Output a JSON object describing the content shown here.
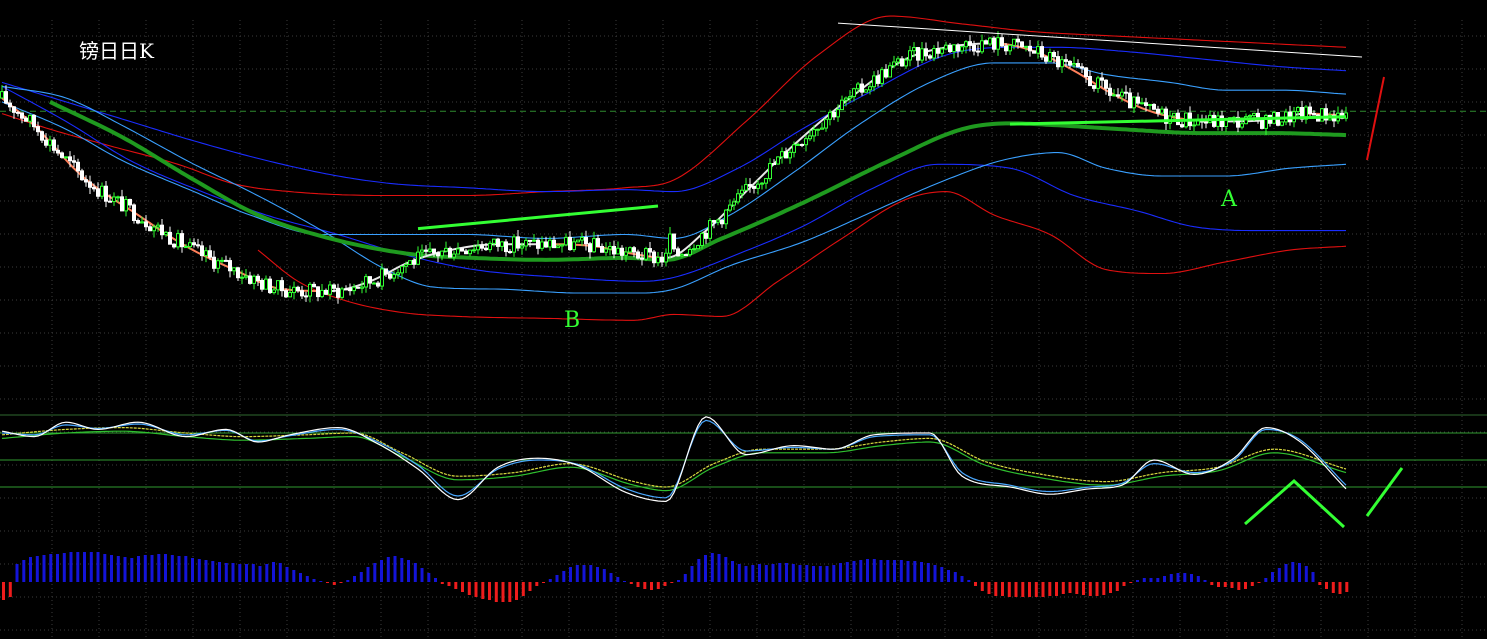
{
  "chart_data": [
    {
      "type": "candlestick",
      "panel": "price",
      "title": "镑日日K",
      "annotations": [
        "A",
        "B"
      ],
      "colors": {
        "up_candle": "#33ff33",
        "down_candle": "#ffffff",
        "ma_short": "#e8e8e8",
        "ma_short_falling": "#ff7f5a",
        "ma_long": "#1f9a1f",
        "band_inner": "#3aa0ff",
        "band_middle": "#1a2dff",
        "band_outer": "#e01010",
        "trendline": "#33ff33",
        "upper_trendline": "#ffffff",
        "dashed_level": "#2f8a2f"
      },
      "grid": true,
      "ma_short_knots": [
        [
          0,
          80
        ],
        [
          8,
          73
        ],
        [
          20,
          60
        ],
        [
          34,
          50
        ],
        [
          46,
          42
        ],
        [
          58,
          36
        ],
        [
          70,
          31
        ],
        [
          82,
          30.5
        ],
        [
          92,
          33
        ],
        [
          102,
          38
        ],
        [
          112,
          41
        ],
        [
          124,
          42.5
        ],
        [
          136,
          42.5
        ],
        [
          148,
          42
        ],
        [
          158,
          40
        ],
        [
          166,
          39
        ],
        [
          176,
          46
        ],
        [
          186,
          56
        ],
        [
          198,
          68
        ],
        [
          212,
          80
        ],
        [
          226,
          90
        ],
        [
          236,
          93
        ],
        [
          248,
          94
        ],
        [
          258,
          92
        ],
        [
          268,
          87
        ],
        [
          276,
          82
        ],
        [
          286,
          77
        ],
        [
          296,
          74.5
        ],
        [
          306,
          74
        ],
        [
          318,
          74.5
        ],
        [
          326,
          76
        ],
        [
          336,
          75.5
        ]
      ],
      "ma_long_knots": [
        [
          12,
          79
        ],
        [
          30,
          70
        ],
        [
          48,
          59
        ],
        [
          64,
          50
        ],
        [
          82,
          44
        ],
        [
          102,
          40
        ],
        [
          118,
          39
        ],
        [
          136,
          38.5
        ],
        [
          156,
          39
        ],
        [
          166,
          38.5
        ],
        [
          180,
          44
        ],
        [
          200,
          53
        ],
        [
          222,
          64
        ],
        [
          240,
          72
        ],
        [
          252,
          73.5
        ],
        [
          264,
          73
        ],
        [
          280,
          72
        ],
        [
          300,
          71
        ],
        [
          318,
          71
        ],
        [
          336,
          70.5
        ]
      ],
      "band_inner_upper_knots": [
        [
          0,
          79
        ],
        [
          16,
          72
        ],
        [
          30,
          64
        ],
        [
          48,
          56
        ],
        [
          62,
          50
        ],
        [
          80,
          45
        ],
        [
          96,
          45
        ],
        [
          116,
          45
        ],
        [
          136,
          44
        ],
        [
          156,
          45
        ],
        [
          168,
          44
        ],
        [
          182,
          50
        ],
        [
          198,
          61
        ],
        [
          214,
          73
        ],
        [
          232,
          84
        ],
        [
          248,
          89
        ],
        [
          262,
          89
        ],
        [
          276,
          86
        ],
        [
          292,
          84
        ],
        [
          306,
          82
        ],
        [
          320,
          82
        ],
        [
          336,
          81
        ]
      ],
      "band_inner_lower_knots": [
        [
          0,
          83
        ],
        [
          16,
          80
        ],
        [
          30,
          73
        ],
        [
          48,
          63
        ],
        [
          62,
          56
        ],
        [
          80,
          46
        ],
        [
          96,
          36
        ],
        [
          108,
          31.5
        ],
        [
          124,
          31
        ],
        [
          144,
          30
        ],
        [
          160,
          30
        ],
        [
          168,
          31
        ],
        [
          182,
          37
        ],
        [
          200,
          43
        ],
        [
          218,
          51
        ],
        [
          236,
          59
        ],
        [
          250,
          64
        ],
        [
          264,
          66
        ],
        [
          276,
          62
        ],
        [
          290,
          60
        ],
        [
          306,
          60
        ],
        [
          322,
          62
        ],
        [
          336,
          63
        ]
      ],
      "band_middle_upper_knots": [
        [
          0,
          84
        ],
        [
          16,
          79
        ],
        [
          32,
          74
        ],
        [
          48,
          69
        ],
        [
          66,
          64
        ],
        [
          84,
          60
        ],
        [
          98,
          58
        ],
        [
          116,
          57
        ],
        [
          136,
          56
        ],
        [
          156,
          56.5
        ],
        [
          168,
          56
        ],
        [
          184,
          62
        ],
        [
          200,
          72
        ],
        [
          216,
          81
        ],
        [
          236,
          91
        ],
        [
          252,
          93
        ],
        [
          264,
          93
        ],
        [
          280,
          92
        ],
        [
          300,
          90
        ],
        [
          320,
          88
        ],
        [
          336,
          87
        ]
      ],
      "band_middle_lower_knots": [
        [
          0,
          83
        ],
        [
          16,
          74
        ],
        [
          32,
          64
        ],
        [
          50,
          56
        ],
        [
          66,
          50
        ],
        [
          84,
          45
        ],
        [
          100,
          40
        ],
        [
          118,
          36
        ],
        [
          140,
          34
        ],
        [
          160,
          33
        ],
        [
          168,
          34
        ],
        [
          184,
          40
        ],
        [
          200,
          47
        ],
        [
          218,
          57
        ],
        [
          234,
          63
        ],
        [
          252,
          62
        ],
        [
          268,
          55
        ],
        [
          284,
          51
        ],
        [
          298,
          47
        ],
        [
          316,
          46
        ],
        [
          336,
          46
        ]
      ],
      "band_outer_upper_knots": [
        [
          0,
          76
        ],
        [
          12,
          72
        ],
        [
          26,
          68
        ],
        [
          44,
          63
        ],
        [
          58,
          58
        ],
        [
          72,
          56
        ],
        [
          96,
          55
        ],
        [
          116,
          55
        ],
        [
          136,
          56
        ],
        [
          156,
          57
        ],
        [
          168,
          59
        ],
        [
          186,
          74
        ],
        [
          204,
          91
        ],
        [
          222,
          101
        ],
        [
          240,
          99
        ],
        [
          258,
          97
        ],
        [
          276,
          96
        ],
        [
          296,
          95
        ],
        [
          316,
          94
        ],
        [
          336,
          93
        ]
      ],
      "band_outer_lower_knots": [
        [
          64,
          41
        ],
        [
          74,
          33
        ],
        [
          86,
          28
        ],
        [
          100,
          25
        ],
        [
          114,
          24
        ],
        [
          136,
          23.5
        ],
        [
          158,
          23
        ],
        [
          168,
          24.5
        ],
        [
          180,
          24
        ],
        [
          194,
          33
        ],
        [
          210,
          44
        ],
        [
          226,
          54
        ],
        [
          236,
          56
        ],
        [
          248,
          50
        ],
        [
          262,
          45
        ],
        [
          276,
          36
        ],
        [
          290,
          35
        ],
        [
          306,
          38
        ],
        [
          322,
          41
        ],
        [
          336,
          42
        ]
      ],
      "trendline_A": [
        [
          252,
          73.3
        ],
        [
          336,
          75.2
        ]
      ],
      "trendline_B": [
        [
          104,
          46.5
        ],
        [
          164,
          52.3
        ]
      ],
      "upper_trendline": [
        [
          209,
          99.2
        ],
        [
          340,
          90.5
        ]
      ],
      "dashed_level": 76.6,
      "ylim": [
        0,
        100
      ]
    },
    {
      "type": "line",
      "panel": "oscillator",
      "colors": {
        "k_line": "#ffffff",
        "d_line": "#4aa8ff",
        "slow_line": "#d8d840",
        "slow_line2": "#2fbf2f",
        "level_lines": "#2f9a2f",
        "panel_border": "#2f6a2f"
      },
      "levels": [
        80,
        50,
        20
      ],
      "ylim": [
        0,
        100
      ],
      "k_knots": [
        [
          0,
          82
        ],
        [
          8,
          76
        ],
        [
          16,
          92
        ],
        [
          24,
          84
        ],
        [
          34,
          92
        ],
        [
          46,
          76
        ],
        [
          56,
          84
        ],
        [
          64,
          70
        ],
        [
          72,
          78
        ],
        [
          84,
          86
        ],
        [
          94,
          68
        ],
        [
          104,
          40
        ],
        [
          114,
          6
        ],
        [
          124,
          42
        ],
        [
          134,
          52
        ],
        [
          144,
          44
        ],
        [
          156,
          14
        ],
        [
          166,
          4
        ],
        [
          176,
          98
        ],
        [
          186,
          56
        ],
        [
          198,
          66
        ],
        [
          208,
          62
        ],
        [
          218,
          78
        ],
        [
          232,
          80
        ],
        [
          240,
          32
        ],
        [
          252,
          20
        ],
        [
          262,
          12
        ],
        [
          272,
          18
        ],
        [
          280,
          22
        ],
        [
          288,
          50
        ],
        [
          298,
          34
        ],
        [
          308,
          52
        ],
        [
          316,
          86
        ],
        [
          324,
          72
        ],
        [
          336,
          18
        ]
      ],
      "d_knots": [
        [
          0,
          80
        ],
        [
          8,
          78
        ],
        [
          16,
          89
        ],
        [
          24,
          85
        ],
        [
          34,
          90
        ],
        [
          46,
          78
        ],
        [
          56,
          83
        ],
        [
          64,
          71
        ],
        [
          72,
          77
        ],
        [
          84,
          84
        ],
        [
          94,
          70
        ],
        [
          104,
          44
        ],
        [
          114,
          10
        ],
        [
          124,
          40
        ],
        [
          134,
          50
        ],
        [
          144,
          45
        ],
        [
          156,
          18
        ],
        [
          166,
          8
        ],
        [
          176,
          94
        ],
        [
          186,
          60
        ],
        [
          198,
          64
        ],
        [
          208,
          62
        ],
        [
          218,
          76
        ],
        [
          232,
          78
        ],
        [
          240,
          36
        ],
        [
          252,
          22
        ],
        [
          262,
          15
        ],
        [
          272,
          20
        ],
        [
          280,
          24
        ],
        [
          288,
          46
        ],
        [
          298,
          36
        ],
        [
          308,
          50
        ],
        [
          316,
          84
        ],
        [
          324,
          74
        ],
        [
          336,
          22
        ]
      ],
      "slow_knots": [
        [
          0,
          78
        ],
        [
          16,
          84
        ],
        [
          30,
          86
        ],
        [
          46,
          80
        ],
        [
          60,
          76
        ],
        [
          76,
          78
        ],
        [
          88,
          80
        ],
        [
          100,
          58
        ],
        [
          114,
          32
        ],
        [
          128,
          36
        ],
        [
          142,
          46
        ],
        [
          158,
          26
        ],
        [
          166,
          20
        ],
        [
          178,
          46
        ],
        [
          190,
          62
        ],
        [
          206,
          62
        ],
        [
          220,
          70
        ],
        [
          232,
          74
        ],
        [
          246,
          48
        ],
        [
          260,
          34
        ],
        [
          276,
          26
        ],
        [
          290,
          36
        ],
        [
          304,
          42
        ],
        [
          318,
          62
        ],
        [
          336,
          40
        ]
      ]
    },
    {
      "type": "bar",
      "panel": "histogram",
      "colors": {
        "positive": "#1414d8",
        "negative": "#ee1c1c"
      },
      "ylim": [
        -55,
        60
      ],
      "values": [
        -18,
        -15,
        18,
        22,
        25,
        26,
        27,
        28,
        28,
        29,
        30,
        30,
        30,
        30,
        30,
        28,
        27,
        26,
        25,
        24,
        26,
        27,
        27,
        28,
        28,
        27,
        26,
        26,
        24,
        23,
        22,
        21,
        20,
        19,
        19,
        18,
        18,
        18,
        16,
        18,
        20,
        19,
        15,
        12,
        9,
        6,
        3,
        1,
        -1,
        -3,
        -1,
        2,
        6,
        10,
        15,
        19,
        22,
        25,
        26,
        24,
        22,
        19,
        14,
        9,
        4,
        -2,
        -4,
        -7,
        -10,
        -13,
        -15,
        -17,
        -18,
        -20,
        -20,
        -20,
        -18,
        -14,
        -9,
        -4,
        -1,
        3,
        7,
        11,
        15,
        17,
        17,
        17,
        15,
        13,
        9,
        5,
        1,
        -2,
        -5,
        -7,
        -8,
        -7,
        -4,
        -1,
        2,
        8,
        16,
        23,
        27,
        29,
        28,
        25,
        21,
        18,
        16,
        17,
        18,
        17,
        18,
        19,
        19,
        18,
        17,
        17,
        16,
        16,
        16,
        17,
        19,
        20,
        21,
        22,
        23,
        23,
        22,
        22,
        22,
        22,
        21,
        21,
        20,
        19,
        17,
        15,
        12,
        10,
        6,
        2,
        -4,
        -9,
        -12,
        -14,
        -14,
        -15,
        -15,
        -15,
        -15,
        -15,
        -15,
        -14,
        -14,
        -12,
        -11,
        -12,
        -13,
        -14,
        -14,
        -13,
        -11,
        -9,
        -4,
        -1,
        2,
        4,
        4,
        4,
        6,
        8,
        9,
        9,
        8,
        6,
        2,
        -3,
        -5,
        -5,
        -6,
        -8,
        -7,
        -4,
        -1,
        4,
        10,
        14,
        18,
        20,
        19,
        16,
        10,
        -3,
        -7,
        -11,
        -12,
        -10
      ]
    }
  ]
}
